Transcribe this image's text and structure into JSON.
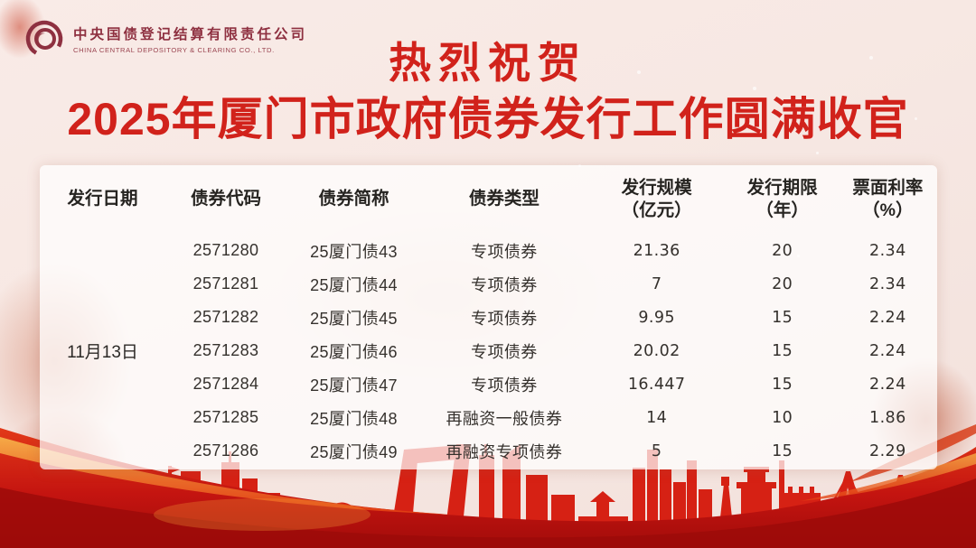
{
  "logo": {
    "company_cn": "中央国债登记结算有限责任公司",
    "company_en": "CHINA CENTRAL DEPOSITORY & CLEARING CO., LTD."
  },
  "title": {
    "line1": "热烈祝贺",
    "line2": "2025年厦门市政府债券发行工作圆满收官"
  },
  "colors": {
    "title_red": "#d1221b",
    "logo_maroon": "#8e3040",
    "skyline_red": "#d62114",
    "wave_red": "#cf1c10",
    "wave_dark": "#9c0b09",
    "wave_orange": "#f5a03a",
    "panel_white": "rgba(255,255,255,0.72)",
    "text_dark": "#2e2b28"
  },
  "table": {
    "issue_date": "11月13日",
    "headers": [
      {
        "main": "发行日期",
        "sub": ""
      },
      {
        "main": "债券代码",
        "sub": ""
      },
      {
        "main": "债券简称",
        "sub": ""
      },
      {
        "main": "债券类型",
        "sub": ""
      },
      {
        "main": "发行规模",
        "sub": "（亿元）"
      },
      {
        "main": "发行期限",
        "sub": "（年）"
      },
      {
        "main": "票面利率",
        "sub": "（%）"
      }
    ],
    "rows": [
      {
        "code": "2571280",
        "name": "25厦门债43",
        "type": "专项债券",
        "scale": "21.36",
        "term": "20",
        "rate": "2.34"
      },
      {
        "code": "2571281",
        "name": "25厦门债44",
        "type": "专项债券",
        "scale": "7",
        "term": "20",
        "rate": "2.34"
      },
      {
        "code": "2571282",
        "name": "25厦门债45",
        "type": "专项债券",
        "scale": "9.95",
        "term": "15",
        "rate": "2.24"
      },
      {
        "code": "2571283",
        "name": "25厦门债46",
        "type": "专项债券",
        "scale": "20.02",
        "term": "15",
        "rate": "2.24"
      },
      {
        "code": "2571284",
        "name": "25厦门债47",
        "type": "专项债券",
        "scale": "16.447",
        "term": "15",
        "rate": "2.24"
      },
      {
        "code": "2571285",
        "name": "25厦门债48",
        "type": "再融资一般债券",
        "scale": "14",
        "term": "10",
        "rate": "1.86"
      },
      {
        "code": "2571286",
        "name": "25厦门债49",
        "type": "再融资专项债券",
        "scale": "5",
        "term": "15",
        "rate": "2.29"
      }
    ]
  }
}
